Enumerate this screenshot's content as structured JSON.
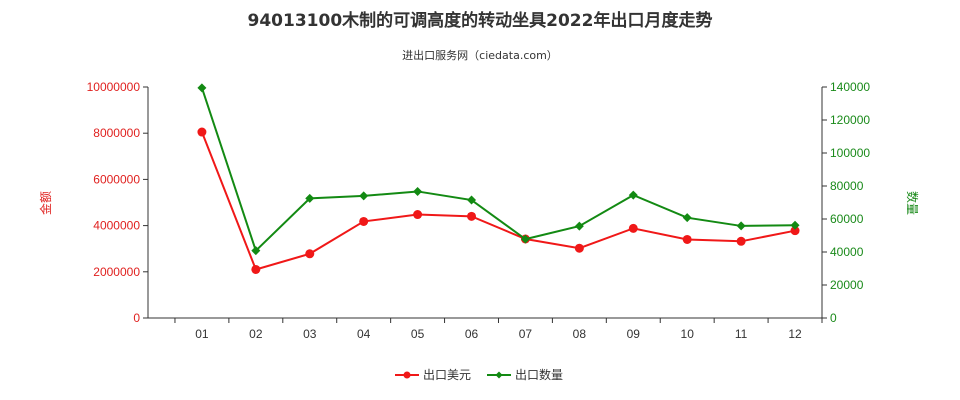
{
  "chart_data": {
    "type": "line",
    "title": "94013100木制的可调高度的转动坐具2022年出口月度走势",
    "subtitle": "进出口服务网（ciedata.com）",
    "categories": [
      "01",
      "02",
      "03",
      "04",
      "05",
      "06",
      "07",
      "08",
      "09",
      "10",
      "11",
      "12"
    ],
    "y_left": {
      "label": "金额",
      "range": [
        0,
        10000000
      ],
      "ticks": [
        "0",
        "2000000",
        "4000000",
        "6000000",
        "8000000",
        "10000000"
      ],
      "color": "#e0211f"
    },
    "y_right": {
      "label": "数量",
      "range": [
        0,
        140000
      ],
      "ticks": [
        "0",
        "20000",
        "40000",
        "60000",
        "80000",
        "100000",
        "120000",
        "140000"
      ],
      "color": "#1a8a1a"
    },
    "series": [
      {
        "name": "出口美元",
        "axis": "left",
        "color": "#f01818",
        "values": [
          8050000,
          2100000,
          2780000,
          4180000,
          4480000,
          4400000,
          3420000,
          3020000,
          3880000,
          3400000,
          3320000,
          3780000
        ]
      },
      {
        "name": "出口数量",
        "axis": "right",
        "color": "#138a13",
        "values": [
          139500,
          40800,
          72500,
          74000,
          76700,
          71500,
          47800,
          55700,
          74500,
          60800,
          55800,
          56200
        ]
      }
    ],
    "legend_position": "bottom-center",
    "grid": false
  }
}
